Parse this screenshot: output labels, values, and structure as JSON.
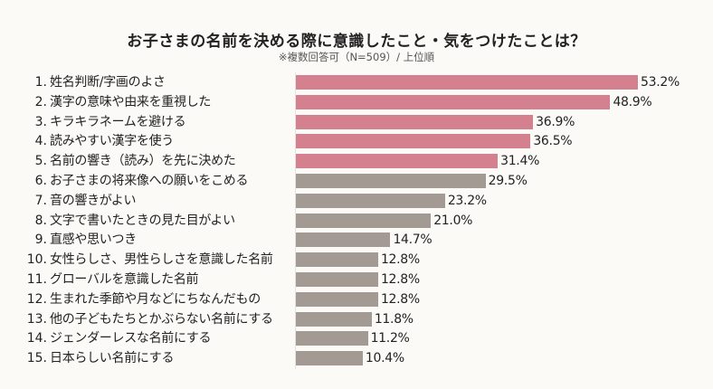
{
  "chart_data": {
    "type": "bar",
    "orientation": "horizontal",
    "title": "お子さまの名前を決める際に意識したこと・気をつけたことは？",
    "subtitle": "※複数回答可（N=509）/ 上位順",
    "unit": "%",
    "xlim": [
      0,
      60
    ],
    "grid": false,
    "categories": [
      "姓名判断/字画のよさ",
      "漢字の意味や由来を重視した",
      "キラキラネームを避ける",
      "読みやすい漢字を使う",
      "名前の響き（読み）を先に決めた",
      "お子さまの将来像への願いをこめる",
      "音の響きがよい",
      "文字で書いたときの見た目がよい",
      "直感や思いつき",
      "女性らしさ、男性らしさを意識した名前",
      "グローバルを意識した名前",
      "生まれた季節や月などにちなんだもの",
      "他の子どもたちとかぶらない名前にする",
      "ジェンダーレスな名前にする",
      "日本らしい名前にする"
    ],
    "ranks": [
      "1.",
      "2.",
      "3.",
      "4.",
      "5.",
      "6.",
      "7.",
      "8.",
      "9.",
      "10.",
      "11.",
      "12.",
      "13.",
      "14.",
      "15."
    ],
    "values": [
      53.2,
      48.9,
      36.9,
      36.5,
      31.4,
      29.5,
      23.2,
      21.0,
      14.7,
      12.8,
      12.8,
      12.8,
      11.8,
      11.2,
      10.4
    ],
    "value_labels": [
      "53.2%",
      "48.9%",
      "36.9%",
      "36.5%",
      "31.4%",
      "29.5%",
      "23.2%",
      "21.0%",
      "14.7%",
      "12.8%",
      "12.8%",
      "12.8%",
      "11.8%",
      "11.2%",
      "10.4%"
    ],
    "highlight_count": 5,
    "colors": {
      "highlight": "#d4808e",
      "default": "#a39b93"
    }
  }
}
